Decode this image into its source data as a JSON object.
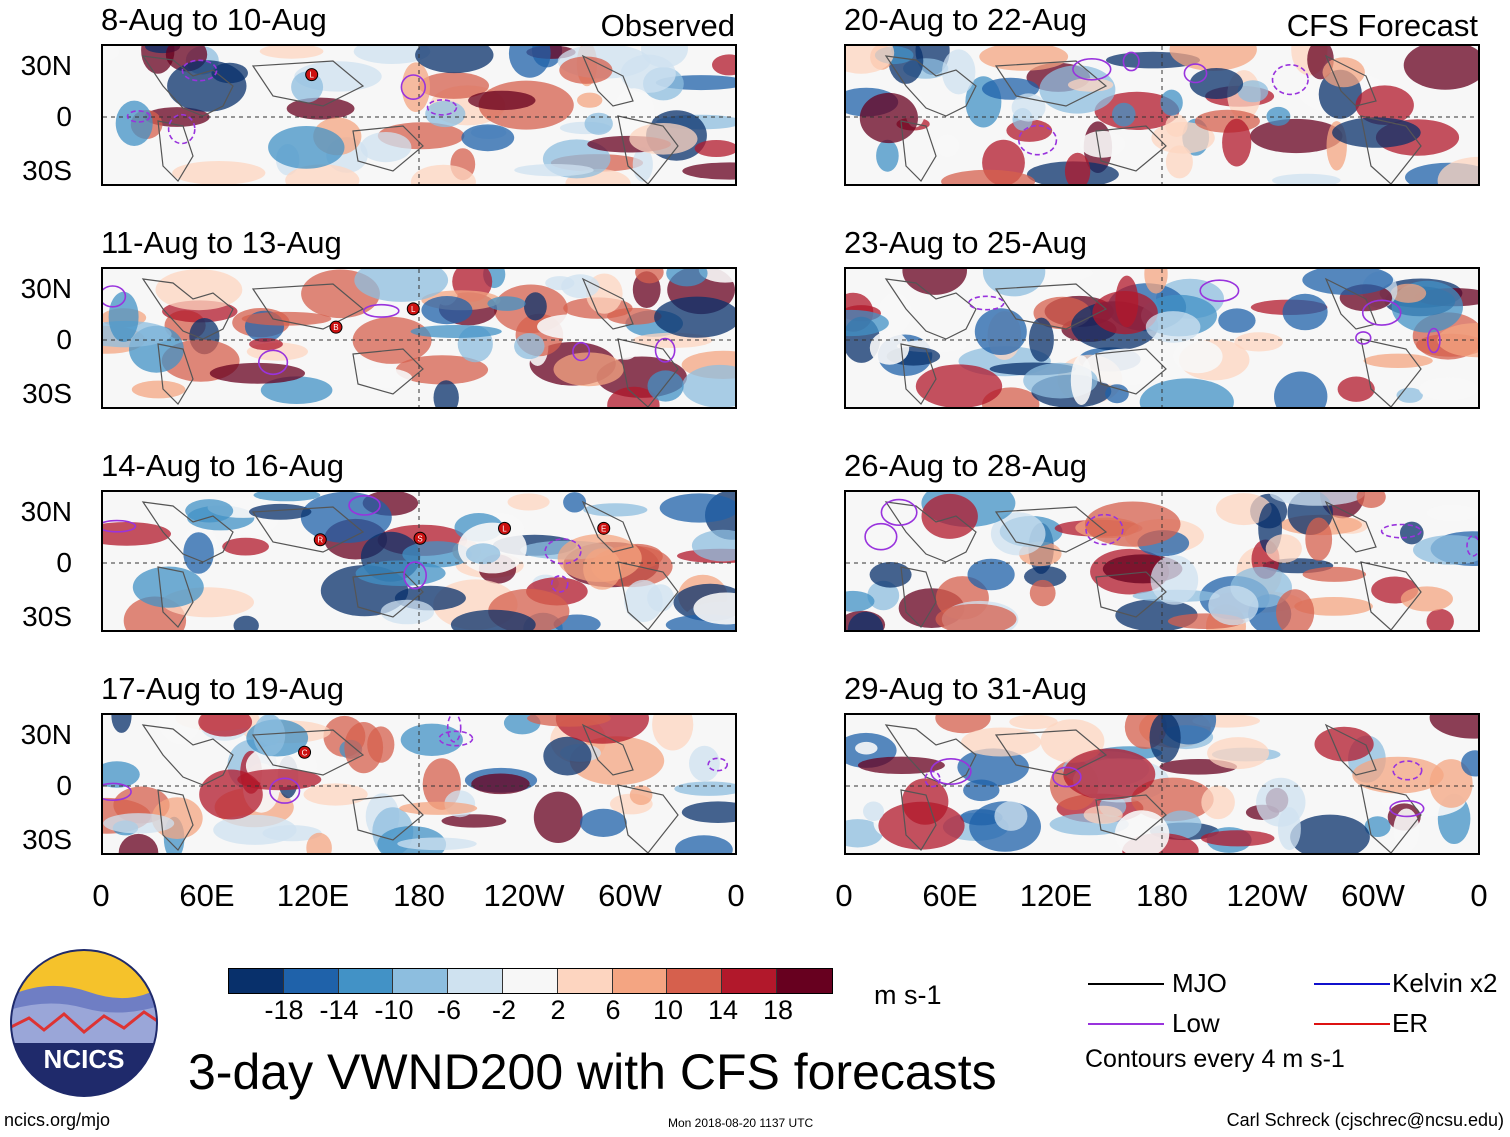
{
  "figure": {
    "title": "3-day VWND200 with CFS forecasts",
    "source_url": "ncics.org/mjo",
    "timestamp": "Mon 2018-08-20 1137 UTC",
    "author": "Carl Schreck (cjschrec@ncsu.edu)",
    "logo_text": "NCICS"
  },
  "columns": {
    "observed_header": "Observed",
    "forecast_header": "CFS Forecast"
  },
  "panels": {
    "observed": [
      {
        "title": "8-Aug to 10-Aug"
      },
      {
        "title": "11-Aug to 13-Aug"
      },
      {
        "title": "14-Aug to 16-Aug"
      },
      {
        "title": "17-Aug to 19-Aug"
      }
    ],
    "forecast": [
      {
        "title": "20-Aug to 22-Aug"
      },
      {
        "title": "23-Aug to 25-Aug"
      },
      {
        "title": "26-Aug to 28-Aug"
      },
      {
        "title": "29-Aug to 31-Aug"
      }
    ]
  },
  "axes": {
    "lat_labels": [
      "30N",
      "0",
      "30S"
    ],
    "lon_labels": [
      "0",
      "60E",
      "120E",
      "180",
      "120W",
      "60W",
      "0"
    ]
  },
  "colorbar": {
    "units": "m s-1",
    "colors": [
      "#08306b",
      "#1f62aa",
      "#4292c6",
      "#8dbedf",
      "#cfe2f0",
      "#f7f7f7",
      "#fdd5c0",
      "#f4a582",
      "#d6604d",
      "#b2182b",
      "#67001f"
    ],
    "labels": [
      "-18",
      "-14",
      "-10",
      "-6",
      "-2",
      "2",
      "6",
      "10",
      "14",
      "18"
    ]
  },
  "legend": {
    "items": [
      {
        "label": "MJO",
        "color": "#000000"
      },
      {
        "label": "Kelvin x2",
        "color": "#1010cc"
      },
      {
        "label": "Low",
        "color": "#9933dd"
      },
      {
        "label": "ER",
        "color": "#dd1111"
      }
    ],
    "contours_note": "Contours every 4 m s-1"
  },
  "storm_markers": {
    "observed_0": [
      "L"
    ],
    "observed_1": [
      "B",
      "L"
    ],
    "observed_2": [
      "R",
      "S",
      "L",
      "E"
    ],
    "observed_3": [
      "C"
    ]
  }
}
